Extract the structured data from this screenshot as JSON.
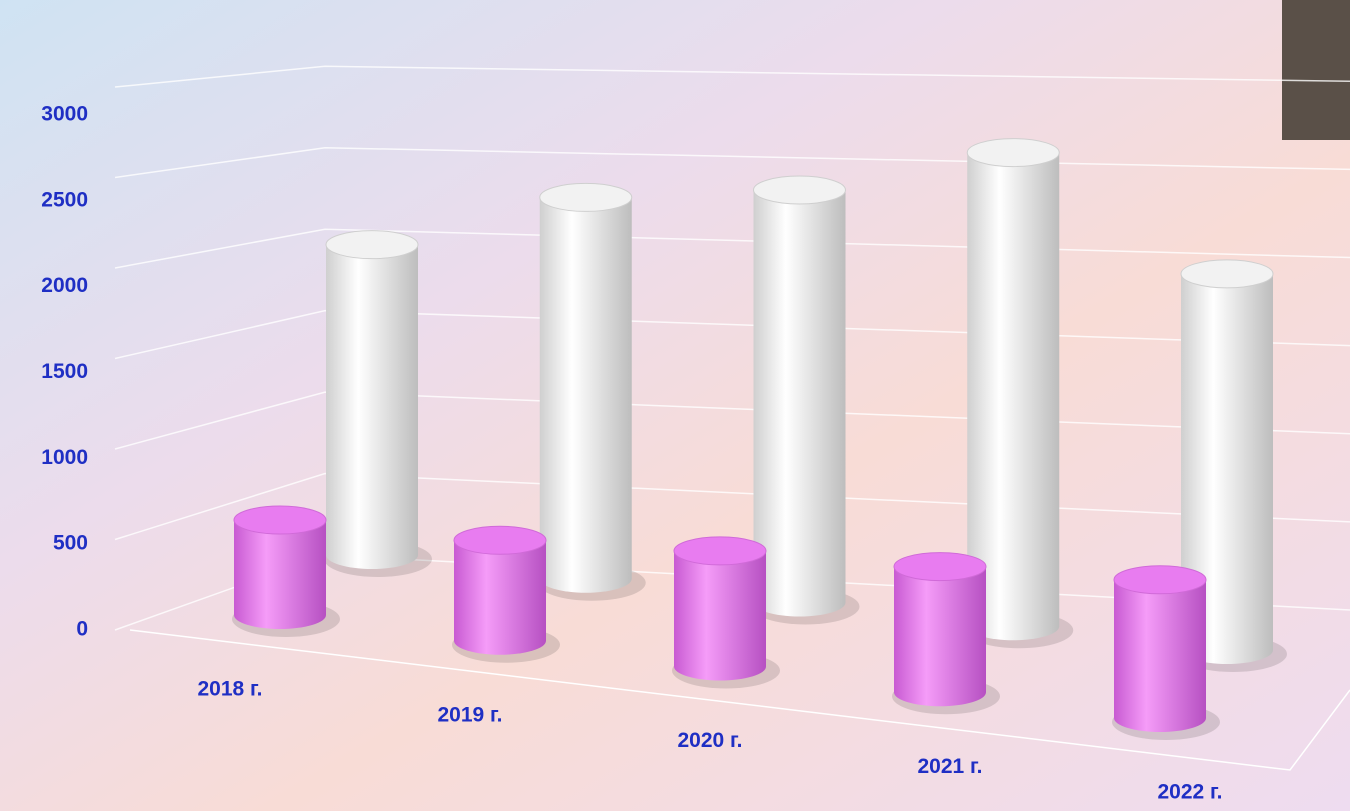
{
  "chart_data": {
    "type": "bar",
    "categories": [
      "2018 г.",
      "2019 г.",
      "2020 г.",
      "2021 г.",
      "2022 г."
    ],
    "series": [
      {
        "color": "#e87cf0",
        "values": [
          550,
          550,
          600,
          620,
          650
        ]
      },
      {
        "color": "#f2f2f2",
        "values": [
          1900,
          2200,
          2250,
          2450,
          1850
        ]
      }
    ],
    "ylim": [
      0,
      3000
    ],
    "yticks": [
      0,
      500,
      1000,
      1500,
      2000,
      2500,
      3000
    ],
    "grid": true
  }
}
